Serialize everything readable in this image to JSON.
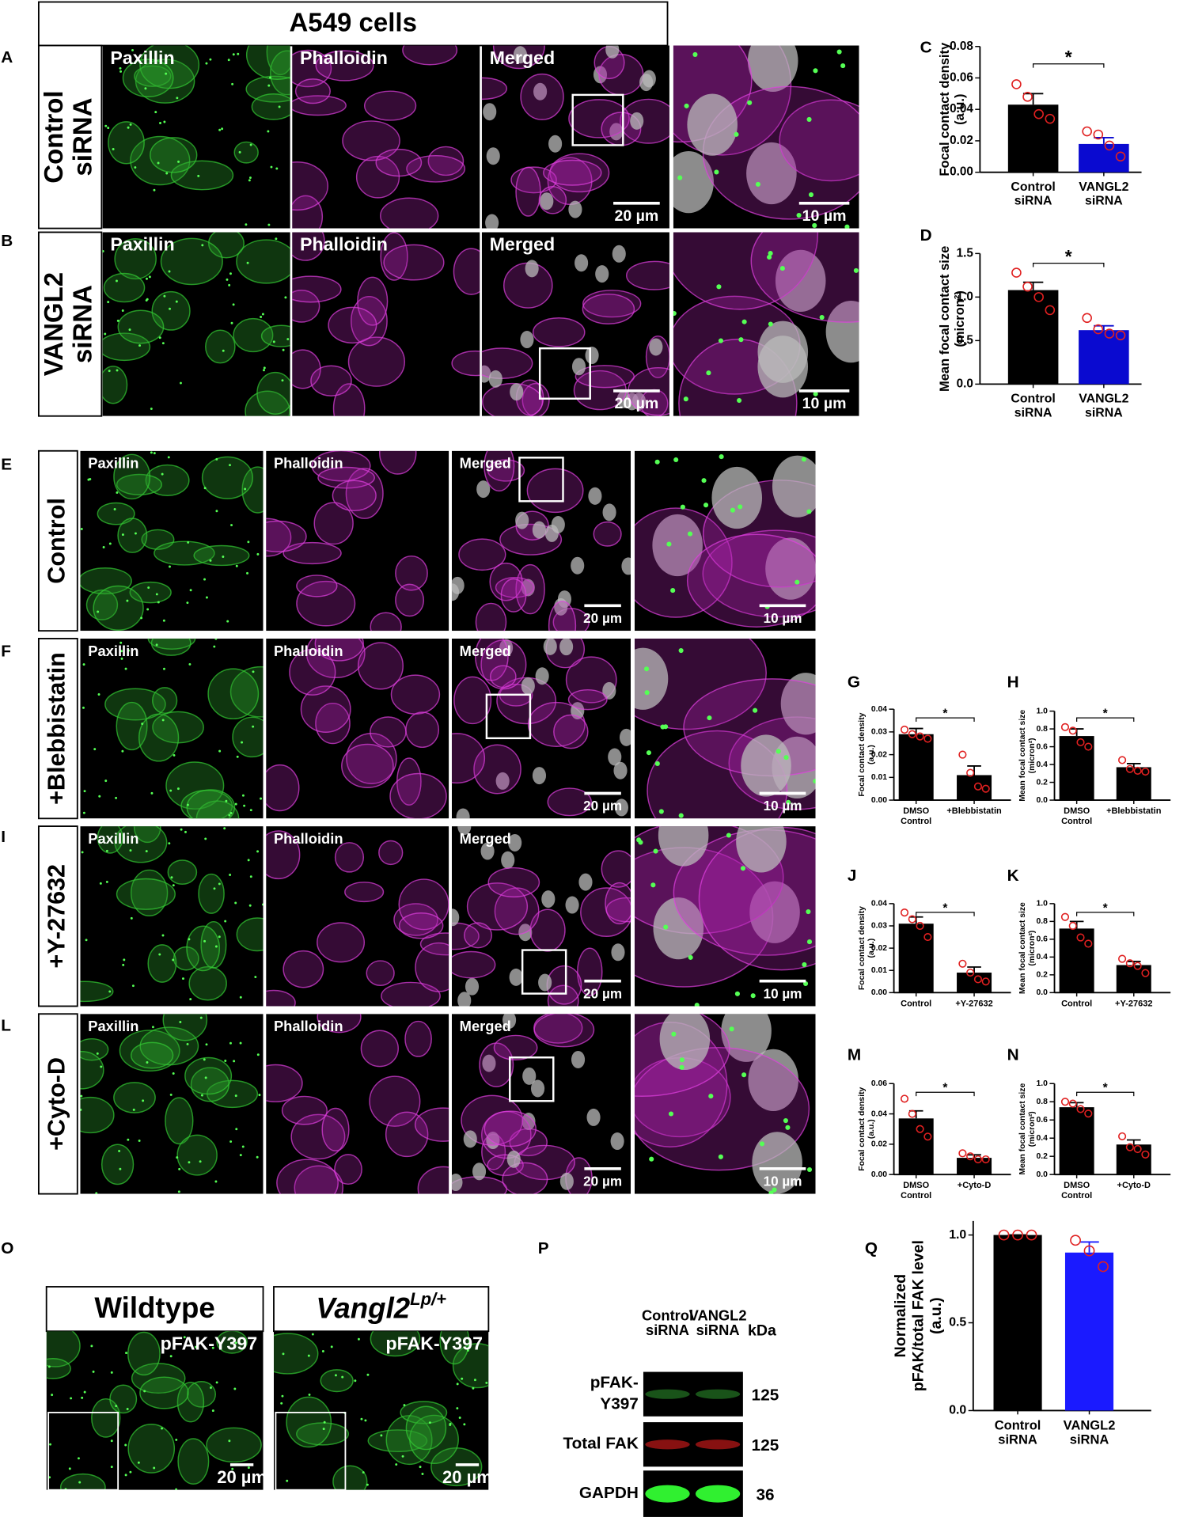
{
  "title": "A549 cells",
  "panel_letters": [
    "A",
    "B",
    "C",
    "D",
    "E",
    "F",
    "G",
    "H",
    "I",
    "J",
    "K",
    "L",
    "M",
    "N",
    "O",
    "P",
    "Q"
  ],
  "image_panels": {
    "channels": [
      "Paxillin",
      "Phalloidin",
      "Merged"
    ],
    "scale_bars": [
      "20 µm",
      "10 µm"
    ],
    "rows_siRNA": [
      [
        "Control",
        "siRNA"
      ],
      [
        "VANGL2",
        "siRNA"
      ]
    ],
    "rows_drug": [
      [
        "Control"
      ],
      [
        "+Blebbistatin"
      ],
      [
        "+Y-27632"
      ],
      [
        "+Cyto-D"
      ]
    ]
  },
  "tissue_panels": {
    "wildtype": "Wildtype",
    "mutant": {
      "text": "Vangl2",
      "sup": "Lp/+"
    },
    "stain": "pFAK-Y397"
  },
  "western_blot": {
    "lanes": [
      [
        "Control",
        "siRNA"
      ],
      [
        "VANGL2",
        "siRNA"
      ]
    ],
    "unit": "kDa",
    "bands": [
      {
        "name": [
          "pFAK-",
          "Y397"
        ],
        "kda": 125
      },
      {
        "name": [
          "Total FAK"
        ],
        "kda": 125
      },
      {
        "name": [
          "GAPDH"
        ],
        "kda": 36
      }
    ]
  },
  "chart_data": [
    {
      "type": "bar",
      "ylabel": [
        "Focal contact density",
        "(a.u.)"
      ],
      "categories": [
        [
          "Control",
          "siRNA"
        ],
        [
          "VANGL2",
          "siRNA"
        ]
      ],
      "values": [
        0.043,
        0.018
      ],
      "errors": [
        0.007,
        0.004
      ],
      "points": [
        [
          0.056,
          0.048,
          0.037,
          0.034
        ],
        [
          0.026,
          0.024,
          0.017,
          0.01
        ]
      ],
      "colors": [
        "#000000",
        "#0a0ad0"
      ],
      "point_color": "#e02020",
      "significance": "*",
      "ylim": [
        0,
        0.08
      ],
      "yticks": [
        {
          "value": 0,
          "label": "0.00"
        },
        0.02,
        0.04,
        0.06,
        0.08
      ]
    },
    {
      "type": "bar",
      "ylabel": [
        "Mean focal contact size",
        "(micron²)"
      ],
      "categories": [
        [
          "Control",
          "siRNA"
        ],
        [
          "VANGL2",
          "siRNA"
        ]
      ],
      "values": [
        1.08,
        0.62
      ],
      "errors": [
        0.09,
        0.05
      ],
      "points": [
        [
          1.28,
          1.12,
          1.0,
          0.85
        ],
        [
          0.76,
          0.63,
          0.58,
          0.56
        ]
      ],
      "colors": [
        "#000000",
        "#0a0ad0"
      ],
      "point_color": "#e02020",
      "significance": "*",
      "ylim": [
        0,
        1.5
      ],
      "yticks": [
        {
          "value": 0,
          "label": "0.0"
        },
        0.5,
        {
          "value": 1,
          "label": "1.0"
        },
        1.5
      ]
    },
    {
      "type": "bar",
      "ylabel": [
        "Focal contact density",
        "(a.u.)"
      ],
      "categories": [
        [
          "DMSO",
          "Control"
        ],
        [
          "+Blebbistatin"
        ]
      ],
      "values": [
        0.029,
        0.011
      ],
      "errors": [
        0.0025,
        0.004
      ],
      "points": [
        [
          0.031,
          0.029,
          0.028,
          0.027
        ],
        [
          0.02,
          0.012,
          0.006,
          0.005
        ]
      ],
      "colors": [
        "#000000",
        "#000000"
      ],
      "point_color": "#e02020",
      "significance": "*",
      "ylim": [
        0,
        0.04
      ],
      "yticks": [
        {
          "value": 0,
          "label": "0.00"
        },
        0.01,
        0.02,
        0.03,
        0.04
      ]
    },
    {
      "type": "bar",
      "ylabel": [
        "Mean focal contact size",
        "(micron²)"
      ],
      "categories": [
        [
          "DMSO",
          "Control"
        ],
        [
          "+Blebbistatin"
        ]
      ],
      "values": [
        0.72,
        0.37
      ],
      "errors": [
        0.08,
        0.04
      ],
      "points": [
        [
          0.82,
          0.78,
          0.65,
          0.6
        ],
        [
          0.45,
          0.35,
          0.33,
          0.32
        ]
      ],
      "colors": [
        "#000000",
        "#000000"
      ],
      "point_color": "#e02020",
      "significance": "*",
      "ylim": [
        0,
        1
      ],
      "yticks": [
        {
          "value": 0,
          "label": "0.0"
        },
        0.2,
        0.4,
        0.6,
        0.8,
        {
          "value": 1,
          "label": "1.0"
        }
      ]
    },
    {
      "type": "bar",
      "ylabel": [
        "Focal contact density",
        "(a.u.)"
      ],
      "categories": [
        [
          "Control"
        ],
        [
          "+Y-27632"
        ]
      ],
      "values": [
        0.031,
        0.009
      ],
      "errors": [
        0.003,
        0.0025
      ],
      "points": [
        [
          0.036,
          0.033,
          0.03,
          0.025
        ],
        [
          0.013,
          0.009,
          0.006,
          0.005
        ]
      ],
      "colors": [
        "#000000",
        "#000000"
      ],
      "point_color": "#e02020",
      "significance": "*",
      "ylim": [
        0,
        0.04
      ],
      "yticks": [
        {
          "value": 0,
          "label": "0.00"
        },
        0.01,
        0.02,
        0.03,
        0.04
      ]
    },
    {
      "type": "bar",
      "ylabel": [
        "Mean focal contact size",
        "(micron²)"
      ],
      "categories": [
        [
          "Control"
        ],
        [
          "+Y-27632"
        ]
      ],
      "values": [
        0.72,
        0.31
      ],
      "errors": [
        0.08,
        0.04
      ],
      "points": [
        [
          0.85,
          0.75,
          0.62,
          0.55
        ],
        [
          0.38,
          0.33,
          0.3,
          0.22
        ]
      ],
      "colors": [
        "#000000",
        "#000000"
      ],
      "point_color": "#e02020",
      "significance": "*",
      "ylim": [
        0,
        1
      ],
      "yticks": [
        {
          "value": 0,
          "label": "0.0"
        },
        0.2,
        0.4,
        0.6,
        0.8,
        {
          "value": 1,
          "label": "1.0"
        }
      ]
    },
    {
      "type": "bar",
      "ylabel": [
        "Focal contact density",
        "(a.u.)"
      ],
      "categories": [
        [
          "DMSO",
          "Control"
        ],
        [
          "+Cyto-D"
        ]
      ],
      "values": [
        0.037,
        0.011
      ],
      "errors": [
        0.005,
        0.002
      ],
      "points": [
        [
          0.05,
          0.04,
          0.03,
          0.025
        ],
        [
          0.014,
          0.012,
          0.01,
          0.01
        ]
      ],
      "colors": [
        "#000000",
        "#000000"
      ],
      "point_color": "#e02020",
      "significance": "*",
      "ylim": [
        0,
        0.06
      ],
      "yticks": [
        {
          "value": 0,
          "label": "0.00"
        },
        0.02,
        0.04,
        0.06
      ]
    },
    {
      "type": "bar",
      "ylabel": [
        "Mean focal contact size",
        "(micron²)"
      ],
      "categories": [
        [
          "DMSO",
          "Control"
        ],
        [
          "+Cyto-D"
        ]
      ],
      "values": [
        0.74,
        0.33
      ],
      "errors": [
        0.05,
        0.05
      ],
      "points": [
        [
          0.8,
          0.78,
          0.72,
          0.67
        ],
        [
          0.42,
          0.3,
          0.28,
          0.22
        ]
      ],
      "colors": [
        "#000000",
        "#000000"
      ],
      "point_color": "#e02020",
      "significance": "*",
      "ylim": [
        0,
        1
      ],
      "yticks": [
        {
          "value": 0,
          "label": "0.0"
        },
        0.2,
        0.4,
        0.6,
        0.8,
        {
          "value": 1,
          "label": "1.0"
        }
      ]
    },
    {
      "type": "bar",
      "ylabel": [
        "Normalized",
        "pFAK/total FAK level",
        "(a.u.)"
      ],
      "categories": [
        [
          "Control",
          "siRNA"
        ],
        [
          "VANGL2",
          "siRNA"
        ]
      ],
      "values": [
        1.0,
        0.9
      ],
      "errors": [
        0,
        0.06
      ],
      "points": [
        [
          1,
          1,
          1
        ],
        [
          0.97,
          0.91,
          0.82
        ]
      ],
      "colors": [
        "#000000",
        "#1a1aff"
      ],
      "point_color": "#e02020",
      "ylim": [
        0,
        1.08
      ],
      "yticks": [
        {
          "value": 0,
          "label": "0.0"
        },
        0.5,
        {
          "value": 1,
          "label": "1.0"
        }
      ]
    }
  ]
}
